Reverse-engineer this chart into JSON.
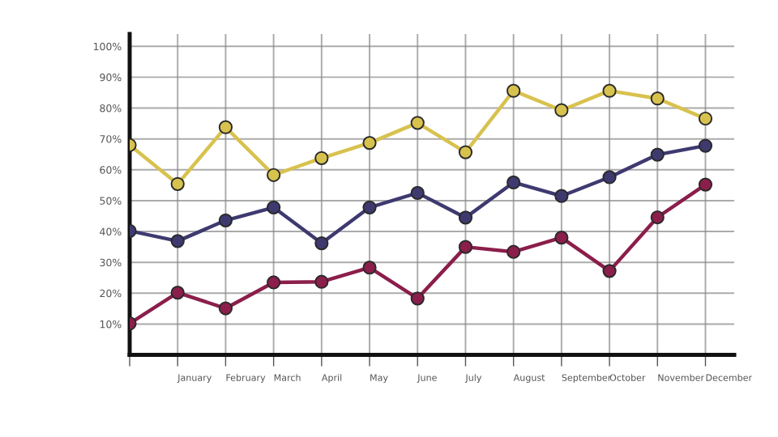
{
  "chart_data": {
    "type": "line",
    "categories": [
      null,
      "January",
      "February",
      "March",
      "April",
      "May",
      "June",
      "July",
      "August",
      "September",
      "October",
      "November",
      "December"
    ],
    "series": [
      {
        "color": "#d8c24e",
        "values": [
          68,
          55.4,
          73.8,
          58.3,
          63.8,
          68.7,
          75.2,
          65.7,
          85.6,
          79.3,
          85.6,
          83.1,
          76.6
        ]
      },
      {
        "color": "#3e3a70",
        "values": [
          40.2,
          36.9,
          43.6,
          47.8,
          36.2,
          47.8,
          52.5,
          44.5,
          55.9,
          51.5,
          57.6,
          64.9,
          67.8
        ]
      },
      {
        "color": "#8b1e4b",
        "values": [
          10.2,
          20.2,
          15.1,
          23.5,
          23.7,
          28.3,
          18.3,
          35,
          33.4,
          38,
          27.2,
          44.6,
          55.2
        ]
      }
    ],
    "ylim": [
      0,
      104
    ],
    "yticks": [
      {
        "value": 10,
        "label": "10%"
      },
      {
        "value": 20,
        "label": "20%"
      },
      {
        "value": 30,
        "label": "30%"
      },
      {
        "value": 40,
        "label": "40%"
      },
      {
        "value": 50,
        "label": "50%"
      },
      {
        "value": 60,
        "label": "60%"
      },
      {
        "value": 70,
        "label": "70%"
      },
      {
        "value": 80,
        "label": "80%"
      },
      {
        "value": 90,
        "label": "90%"
      },
      {
        "value": 100,
        "label": "100%"
      }
    ],
    "grid": true,
    "marker": "circle",
    "line_style": "solid"
  }
}
